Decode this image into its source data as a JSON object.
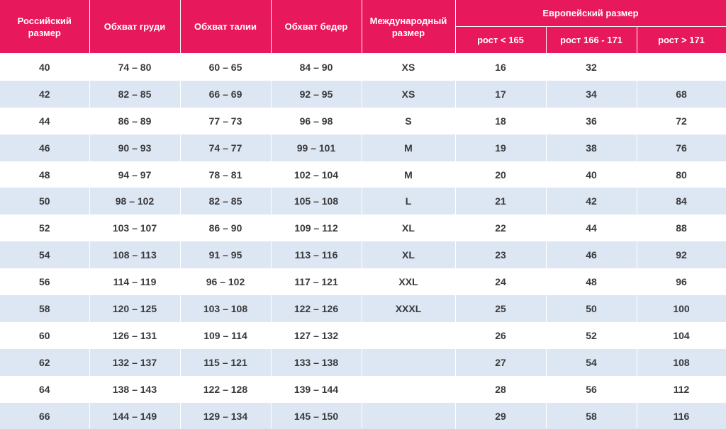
{
  "header": {
    "columns": [
      "Российский размер",
      "Обхват груди",
      "Обхват талии",
      "Обхват бедер",
      "Международный размер"
    ],
    "group": "Европейский размер",
    "subcolumns": [
      "рост < 165",
      "рост 166 - 171",
      "рост > 171"
    ]
  },
  "table": {
    "rows": [
      [
        "40",
        "74 – 80",
        "60 – 65",
        "84 – 90",
        "XS",
        "16",
        "32",
        null
      ],
      [
        "42",
        "82 – 85",
        "66 – 69",
        "92 – 95",
        "XS",
        "17",
        "34",
        "68"
      ],
      [
        "44",
        "86 – 89",
        "77 – 73",
        "96 – 98",
        "S",
        "18",
        "36",
        "72"
      ],
      [
        "46",
        "90 – 93",
        "74 – 77",
        "99 – 101",
        "M",
        "19",
        "38",
        "76"
      ],
      [
        "48",
        "94 – 97",
        "78 – 81",
        "102 – 104",
        "M",
        "20",
        "40",
        "80"
      ],
      [
        "50",
        "98 – 102",
        "82 – 85",
        "105 – 108",
        "L",
        "21",
        "42",
        "84"
      ],
      [
        "52",
        "103 – 107",
        "86 – 90",
        "109 – 112",
        "XL",
        "22",
        "44",
        "88"
      ],
      [
        "54",
        "108 – 113",
        "91 – 95",
        "113 – 116",
        "XL",
        "23",
        "46",
        "92"
      ],
      [
        "56",
        "114 – 119",
        "96 – 102",
        "117 – 121",
        "XXL",
        "24",
        "48",
        "96"
      ],
      [
        "58",
        "120 – 125",
        "103 – 108",
        "122 – 126",
        "XXXL",
        "25",
        "50",
        "100"
      ],
      [
        "60",
        "126 – 131",
        "109 – 114",
        "127 – 132",
        null,
        "26",
        "52",
        "104"
      ],
      [
        "62",
        "132 – 137",
        "115 – 121",
        "133 – 138",
        null,
        "27",
        "54",
        "108"
      ],
      [
        "64",
        "138 – 143",
        "122 – 128",
        "139 – 144",
        null,
        "28",
        "56",
        "112"
      ],
      [
        "66",
        "144 – 149",
        "129 – 134",
        "145 – 150",
        null,
        "29",
        "58",
        "116"
      ]
    ]
  }
}
